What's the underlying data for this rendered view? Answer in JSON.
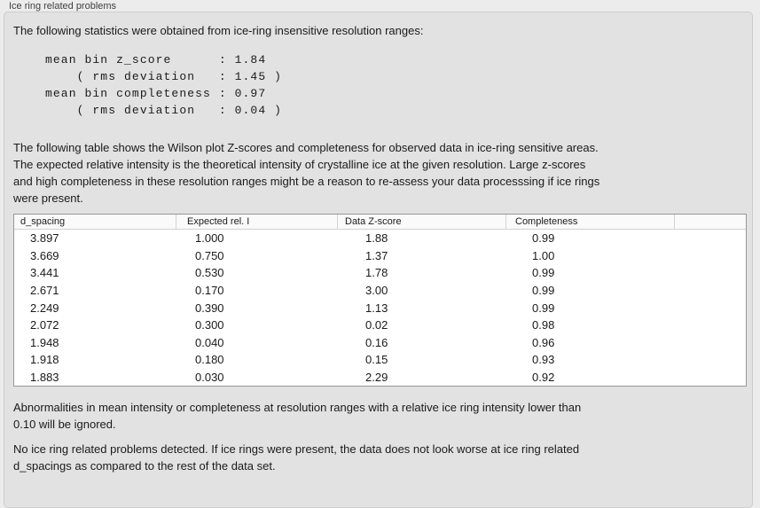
{
  "group": {
    "label": "Ice ring related problems"
  },
  "intro_text": "The following statistics were obtained from ice-ring insensitive resolution ranges:",
  "stats_text": "mean bin z_score      : 1.84\n    ( rms deviation   : 1.45 )\nmean bin completeness : 0.97\n    ( rms deviation   : 0.04 )",
  "table_description": "The following table shows the Wilson plot Z-scores and completeness for observed data in ice-ring sensitive areas.\nThe expected relative intensity is the theoretical intensity of crystalline ice at the given resolution. Large z-scores\nand high completeness in these resolution ranges might be a reason to re-assess your data processsing if ice rings\nwere present.",
  "ice_table": {
    "columns": [
      "d_spacing",
      "Expected rel. I",
      "Data Z-score",
      "Completeness",
      ""
    ],
    "rows": [
      [
        "3.897",
        "1.000",
        "1.88",
        "0.99"
      ],
      [
        "3.669",
        "0.750",
        "1.37",
        "1.00"
      ],
      [
        "3.441",
        "0.530",
        "1.78",
        "0.99"
      ],
      [
        "2.671",
        "0.170",
        "3.00",
        "0.99"
      ],
      [
        "2.249",
        "0.390",
        "1.13",
        "0.99"
      ],
      [
        "2.072",
        "0.300",
        "0.02",
        "0.98"
      ],
      [
        "1.948",
        "0.040",
        "0.16",
        "0.96"
      ],
      [
        "1.918",
        "0.180",
        "0.15",
        "0.93"
      ],
      [
        "1.883",
        "0.030",
        "2.29",
        "0.92"
      ]
    ]
  },
  "ignore_note": "Abnormalities in mean intensity or completeness at resolution ranges with a relative ice ring intensity lower than\n0.10 will be ignored.",
  "conclusion": "No ice ring related problems detected. If ice rings were present, the data does not look worse at ice ring related\nd_spacings as compared to the rest of the data set."
}
